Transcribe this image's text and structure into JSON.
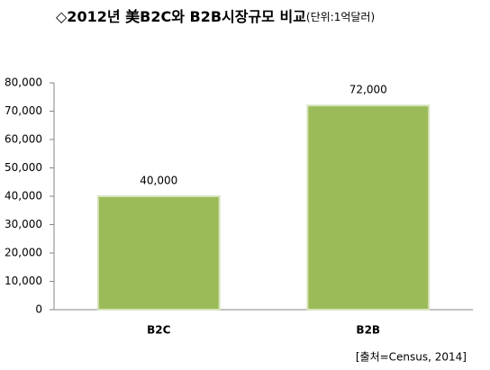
{
  "chart_data": {
    "type": "bar",
    "title": "◇2012년 美B2C와 B2B시장규모 비교",
    "subtitle": "(단위:1억달러)",
    "categories": [
      "B2C",
      "B2B"
    ],
    "values": [
      40000,
      72000
    ],
    "value_labels": [
      "40,000",
      "72,000"
    ],
    "color": "#9bbb59",
    "ylim": [
      0,
      80000
    ],
    "yticks": [
      0,
      {
        "value": 10000,
        "label": "10,000"
      },
      {
        "value": 20000,
        "label": "20,000"
      },
      {
        "value": 30000,
        "label": "30,000"
      },
      {
        "value": 40000,
        "label": "40,000"
      },
      {
        "value": 50000,
        "label": "50,000"
      },
      {
        "value": 60000,
        "label": "60,000"
      },
      {
        "value": 70000,
        "label": "70,000"
      },
      {
        "value": 80000,
        "label": "80,000"
      }
    ],
    "grid": false,
    "source": "[출처=Census, 2014]"
  }
}
